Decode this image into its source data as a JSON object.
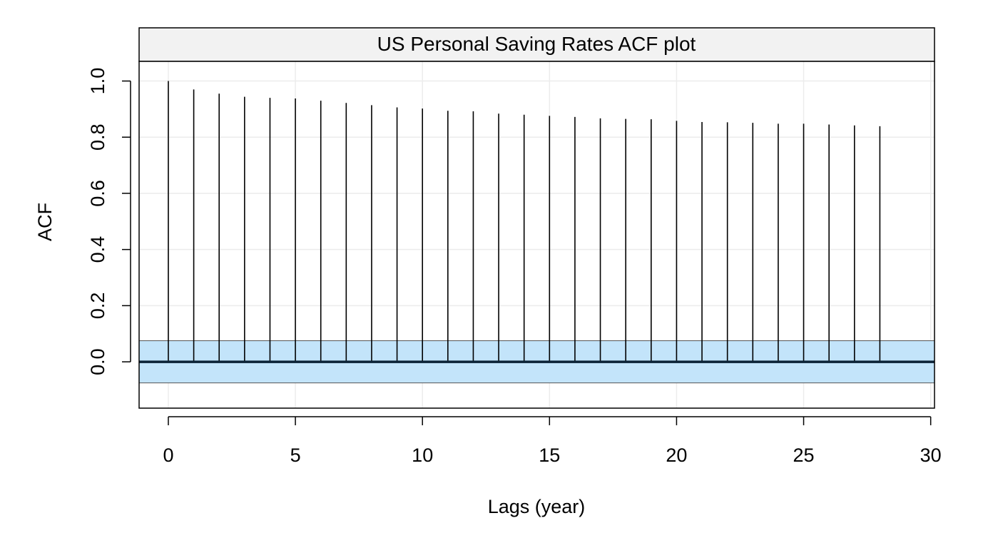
{
  "chart_data": {
    "type": "bar",
    "title": "US Personal Saving Rates ACF plot",
    "xlabel": "Lags (year)",
    "ylabel": "ACF",
    "x_ticks": [
      "0",
      "5",
      "10",
      "15",
      "20",
      "25",
      "30"
    ],
    "y_ticks": [
      "0.0",
      "0.2",
      "0.4",
      "0.6",
      "0.8",
      "1.0"
    ],
    "xlim": [
      -1.15,
      30.15
    ],
    "ylim": [
      -0.165,
      1.07
    ],
    "grid": true,
    "series": [
      {
        "lags": [
          0,
          1,
          2,
          3,
          4,
          5,
          6,
          7,
          8,
          9,
          10,
          11,
          12,
          13,
          14,
          15,
          16,
          17,
          18,
          19,
          20,
          21,
          22,
          23,
          24,
          25,
          26,
          27,
          28
        ],
        "values": [
          1.0,
          0.97,
          0.955,
          0.944,
          0.94,
          0.938,
          0.93,
          0.922,
          0.914,
          0.906,
          0.902,
          0.894,
          0.892,
          0.884,
          0.88,
          0.876,
          0.872,
          0.867,
          0.865,
          0.864,
          0.858,
          0.854,
          0.853,
          0.851,
          0.848,
          0.848,
          0.845,
          0.842,
          0.839
        ]
      }
    ],
    "confidence_band": [
      -0.075,
      0.075
    ],
    "colors": {
      "band_fill": "#c3e4fa",
      "band_edge": "#555555",
      "zero_line": "#0a2236",
      "spike": "#000000",
      "grid": "#ececec",
      "strip_fill": "#f2f2f2"
    }
  }
}
